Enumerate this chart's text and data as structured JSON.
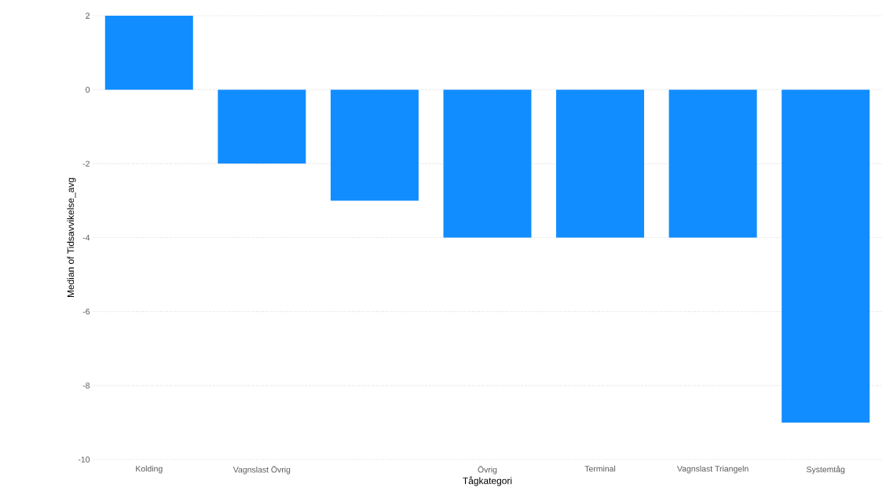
{
  "chart_data": {
    "type": "bar",
    "xlabel": "Tågkategori",
    "ylabel": "Median of Tidsavvikelse_avg",
    "categories": [
      "Kolding",
      "Vagnslast Övrig",
      null,
      "Övrig",
      "Terminal",
      "Vagnslast Triangeln",
      "Systemtåg"
    ],
    "values": [
      2,
      -2,
      -3,
      -4,
      -4,
      -4,
      -9
    ],
    "color": "#118dff",
    "ylim": [
      -10,
      2
    ],
    "yticks": [
      -10,
      -8,
      -6,
      -4,
      -2,
      0,
      2
    ],
    "grid": "y"
  }
}
